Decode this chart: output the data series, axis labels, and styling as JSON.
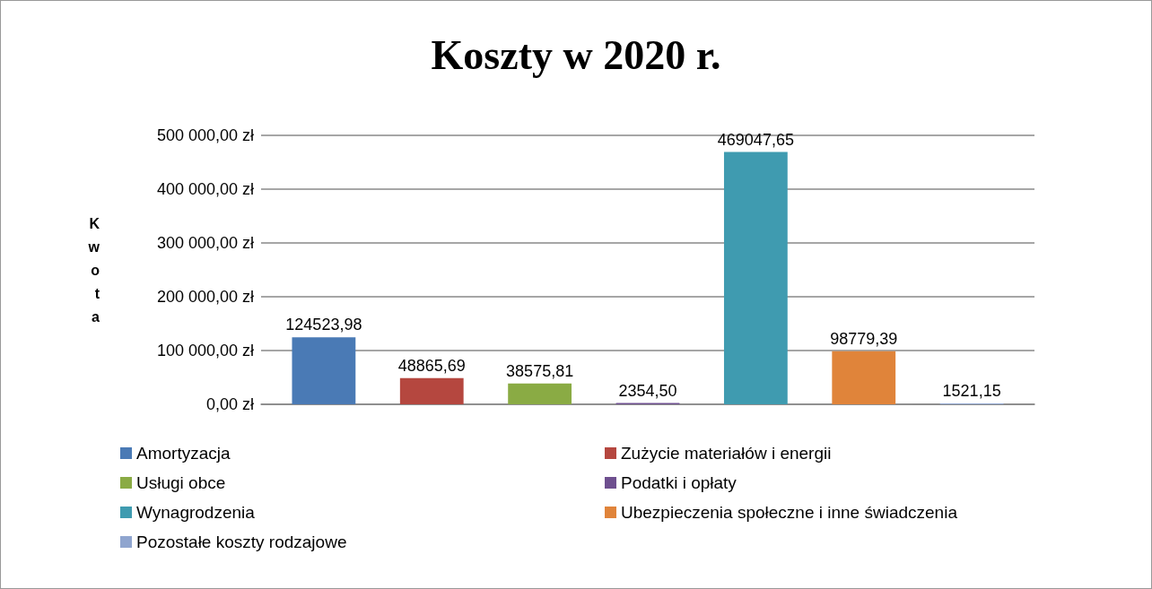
{
  "chart_data": {
    "type": "bar",
    "title": "Koszty w 2020 r.",
    "ylabel": "Kwota",
    "categories": [
      null
    ],
    "series": [
      {
        "name": "Amortyzacja",
        "color": "#4a7ab5",
        "values": [
          124523.98
        ],
        "value_labels": [
          "124523,98"
        ]
      },
      {
        "name": "Zużycie materiałów i energii",
        "color": "#b5473f",
        "values": [
          48865.69
        ],
        "value_labels": [
          "48865,69"
        ]
      },
      {
        "name": "Usługi obce",
        "color": "#8aab44",
        "values": [
          38575.81
        ],
        "value_labels": [
          "38575,81"
        ]
      },
      {
        "name": "Podatki i opłaty",
        "color": "#6e4f8f",
        "values": [
          2354.5
        ],
        "value_labels": [
          "2354,50"
        ]
      },
      {
        "name": "Wynagrodzenia",
        "color": "#3f9bb0",
        "values": [
          469047.65
        ],
        "value_labels": [
          "469047,65"
        ]
      },
      {
        "name": "Ubezpieczenia społeczne i inne świadczenia",
        "color": "#e0843a",
        "values": [
          98779.39
        ],
        "value_labels": [
          "98779,39"
        ]
      },
      {
        "name": "Pozostałe koszty rodzajowe",
        "color": "#8fa5cf",
        "values": [
          1521.15
        ],
        "value_labels": [
          "1521,15"
        ]
      }
    ],
    "ylim": [
      0,
      500000
    ],
    "yticks": [
      {
        "value": 0,
        "label": "0,00 zł"
      },
      {
        "value": 100000,
        "label": "100 000,00 zł"
      },
      {
        "value": 200000,
        "label": "200 000,00 zł"
      },
      {
        "value": 300000,
        "label": "300 000,00 zł"
      },
      {
        "value": 400000,
        "label": "400 000,00 zł"
      },
      {
        "value": 500000,
        "label": "500 000,00 zł"
      }
    ],
    "grid": "y",
    "legend": "bottom"
  }
}
